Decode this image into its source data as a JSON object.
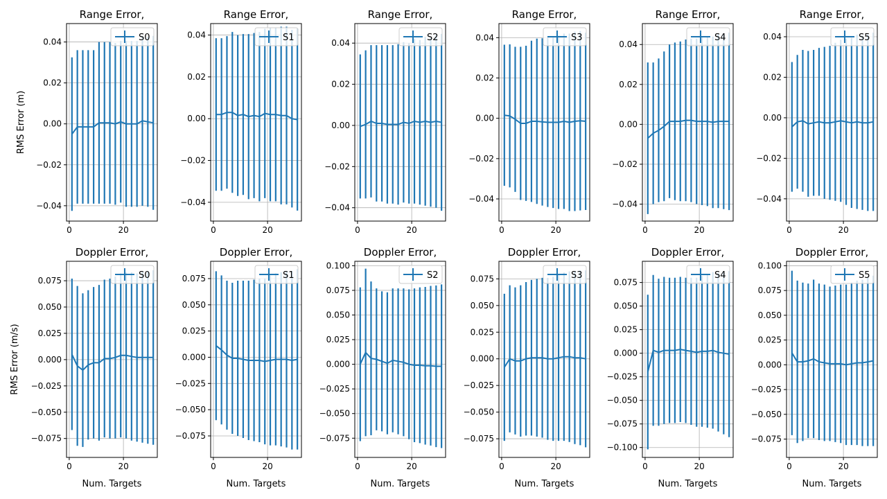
{
  "figure": {
    "background": "#ffffff",
    "series_color": "#1f77b4",
    "grid_color": "#b0b0b0"
  },
  "chart_data": [
    {
      "type": "line",
      "error_bars": true,
      "title": "Range Error,",
      "ylabel": "RMS Error (m)",
      "xlabel": "",
      "legend": "S0",
      "legend_loc": "upper right",
      "grid": true,
      "xlim": [
        -1,
        32.5
      ],
      "ylim": [
        -0.0475,
        0.049
      ],
      "xticks": [
        0,
        20
      ],
      "xtick_labels": [
        "0",
        "20"
      ],
      "yticks": [
        -0.04,
        -0.02,
        0.0,
        0.02,
        0.04
      ],
      "ytick_labels": [
        "−0.04",
        "−0.02",
        "0.00",
        "0.02",
        "0.04"
      ],
      "x": [
        1,
        3,
        5,
        7,
        9,
        11,
        13,
        15,
        17,
        19,
        21,
        23,
        25,
        27,
        29,
        31
      ],
      "y": [
        -0.005,
        -0.0015,
        -0.0015,
        -0.0015,
        -0.0015,
        0.0005,
        0.0005,
        0.0005,
        0.0,
        0.001,
        0.0,
        0.0,
        0.0,
        0.0015,
        0.001,
        0.0005
      ],
      "yerr": [
        0.0375,
        0.0375,
        0.0375,
        0.0375,
        0.0375,
        0.0395,
        0.0395,
        0.0395,
        0.0395,
        0.0395,
        0.0405,
        0.0405,
        0.0405,
        0.0415,
        0.0415,
        0.0425
      ]
    },
    {
      "type": "line",
      "error_bars": true,
      "title": "Range Error,",
      "ylabel": "",
      "xlabel": "",
      "legend": "S1",
      "legend_loc": "upper right",
      "grid": true,
      "xlim": [
        -1,
        32.5
      ],
      "ylim": [
        -0.049,
        0.0455
      ],
      "xticks": [
        0,
        20
      ],
      "xtick_labels": [
        "0",
        "20"
      ],
      "yticks": [
        -0.04,
        -0.02,
        0.0,
        0.02,
        0.04
      ],
      "ytick_labels": [
        "−0.04",
        "−0.02",
        "0.00",
        "0.02",
        "0.04"
      ],
      "x": [
        1,
        3,
        5,
        7,
        9,
        11,
        13,
        15,
        17,
        19,
        21,
        23,
        25,
        27,
        29,
        31
      ],
      "y": [
        0.002,
        0.002,
        0.003,
        0.003,
        0.0015,
        0.002,
        0.001,
        0.0015,
        0.001,
        0.0025,
        0.002,
        0.002,
        0.0015,
        0.0015,
        0.0,
        -0.0005
      ],
      "yerr": [
        0.0365,
        0.0365,
        0.0365,
        0.0385,
        0.0385,
        0.0385,
        0.0395,
        0.0395,
        0.0405,
        0.0405,
        0.0415,
        0.0415,
        0.0425,
        0.0425,
        0.0425,
        0.0435
      ]
    },
    {
      "type": "line",
      "error_bars": true,
      "title": "Range Error,",
      "ylabel": "",
      "xlabel": "",
      "legend": "S2",
      "legend_loc": "upper right",
      "grid": true,
      "xlim": [
        -1,
        32.5
      ],
      "ylim": [
        -0.0465,
        0.0495
      ],
      "xticks": [
        0,
        20
      ],
      "xtick_labels": [
        "0",
        "20"
      ],
      "yticks": [
        -0.04,
        -0.02,
        0.0,
        0.02,
        0.04
      ],
      "ytick_labels": [
        "−0.04",
        "−0.02",
        "0.00",
        "0.02",
        "0.04"
      ],
      "x": [
        1,
        3,
        5,
        7,
        9,
        11,
        13,
        15,
        17,
        19,
        21,
        23,
        25,
        27,
        29,
        31
      ],
      "y": [
        -0.0005,
        0.0005,
        0.002,
        0.001,
        0.001,
        0.0005,
        0.0005,
        0.0005,
        0.0015,
        0.001,
        0.002,
        0.0015,
        0.002,
        0.0015,
        0.002,
        0.0015
      ],
      "yerr": [
        0.035,
        0.036,
        0.037,
        0.038,
        0.038,
        0.0385,
        0.0385,
        0.039,
        0.039,
        0.039,
        0.04,
        0.04,
        0.041,
        0.041,
        0.042,
        0.043
      ]
    },
    {
      "type": "line",
      "error_bars": true,
      "title": "Range Error,",
      "ylabel": "",
      "xlabel": "",
      "legend": "S3",
      "legend_loc": "upper right",
      "grid": true,
      "xlim": [
        -1,
        32.5
      ],
      "ylim": [
        -0.051,
        0.047
      ],
      "xticks": [
        0,
        20
      ],
      "xtick_labels": [
        "0",
        "20"
      ],
      "yticks": [
        -0.04,
        -0.02,
        0.0,
        0.02,
        0.04
      ],
      "ytick_labels": [
        "−0.04",
        "−0.02",
        "0.00",
        "0.02",
        "0.04"
      ],
      "x": [
        1,
        3,
        5,
        7,
        9,
        11,
        13,
        15,
        17,
        19,
        21,
        23,
        25,
        27,
        29,
        31
      ],
      "y": [
        0.0015,
        0.0012,
        -0.0005,
        -0.0025,
        -0.0025,
        -0.0015,
        -0.0015,
        -0.0018,
        -0.002,
        -0.002,
        -0.002,
        -0.0015,
        -0.002,
        -0.0015,
        -0.0012,
        -0.0015
      ],
      "yerr": [
        0.035,
        0.0355,
        0.036,
        0.038,
        0.0385,
        0.04,
        0.041,
        0.0415,
        0.042,
        0.0425,
        0.043,
        0.0435,
        0.044,
        0.0445,
        0.0445,
        0.044
      ]
    },
    {
      "type": "line",
      "error_bars": true,
      "title": "Range Error,",
      "ylabel": "",
      "xlabel": "",
      "legend": "S4",
      "legend_loc": "upper right",
      "grid": true,
      "xlim": [
        -1,
        32.5
      ],
      "ylim": [
        -0.0485,
        0.0505
      ],
      "xticks": [
        0,
        20
      ],
      "xtick_labels": [
        "0",
        "20"
      ],
      "yticks": [
        -0.04,
        -0.02,
        0.0,
        0.02,
        0.04
      ],
      "ytick_labels": [
        "−0.04",
        "−0.02",
        "0.00",
        "0.02",
        "0.04"
      ],
      "x": [
        1,
        3,
        5,
        7,
        9,
        11,
        13,
        15,
        17,
        19,
        21,
        23,
        25,
        27,
        29,
        31
      ],
      "y": [
        -0.007,
        -0.0045,
        -0.003,
        -0.001,
        0.0015,
        0.0015,
        0.0015,
        0.002,
        0.002,
        0.0015,
        0.0015,
        0.0015,
        0.001,
        0.0015,
        0.0015,
        0.0015
      ],
      "yerr": [
        0.038,
        0.0355,
        0.036,
        0.0375,
        0.0385,
        0.0395,
        0.04,
        0.0405,
        0.041,
        0.0415,
        0.042,
        0.0425,
        0.043,
        0.0435,
        0.044,
        0.0445
      ]
    },
    {
      "type": "line",
      "error_bars": true,
      "title": "Range Error,",
      "ylabel": "",
      "xlabel": "",
      "legend": "S5",
      "legend_loc": "upper right",
      "grid": true,
      "xlim": [
        -1,
        32.5
      ],
      "ylim": [
        -0.051,
        0.0465
      ],
      "xticks": [
        0,
        20
      ],
      "xtick_labels": [
        "0",
        "20"
      ],
      "yticks": [
        -0.04,
        -0.02,
        0.0,
        0.02,
        0.04
      ],
      "ytick_labels": [
        "−0.04",
        "−0.02",
        "0.00",
        "0.02",
        "0.04"
      ],
      "x": [
        1,
        3,
        5,
        7,
        9,
        11,
        13,
        15,
        17,
        19,
        21,
        23,
        25,
        27,
        29,
        31
      ],
      "y": [
        -0.0045,
        -0.002,
        -0.0015,
        -0.003,
        -0.0025,
        -0.002,
        -0.0025,
        -0.0025,
        -0.002,
        -0.0015,
        -0.002,
        -0.0025,
        -0.002,
        -0.0025,
        -0.0025,
        -0.002
      ],
      "yerr": [
        0.032,
        0.033,
        0.035,
        0.036,
        0.036,
        0.0365,
        0.0375,
        0.038,
        0.039,
        0.04,
        0.041,
        0.042,
        0.043,
        0.043,
        0.0435,
        0.044
      ]
    },
    {
      "type": "line",
      "error_bars": true,
      "title": "Doppler Error,",
      "ylabel": "RMS Error (m/s)",
      "xlabel": "Num. Targets",
      "legend": "S0",
      "legend_loc": "upper right",
      "grid": true,
      "xlim": [
        -1,
        32.5
      ],
      "ylim": [
        -0.093,
        0.0935
      ],
      "xticks": [
        0,
        20
      ],
      "xtick_labels": [
        "0",
        "20"
      ],
      "yticks": [
        -0.075,
        -0.05,
        -0.025,
        0.0,
        0.025,
        0.05,
        0.075
      ],
      "ytick_labels": [
        "−0.075",
        "−0.050",
        "−0.025",
        "0.000",
        "0.025",
        "0.050",
        "0.075"
      ],
      "x": [
        1,
        3,
        5,
        7,
        9,
        11,
        13,
        15,
        17,
        19,
        21,
        23,
        25,
        27,
        29,
        31
      ],
      "y": [
        0.005,
        -0.006,
        -0.01,
        -0.005,
        -0.003,
        -0.003,
        0.001,
        0.001,
        0.002,
        0.004,
        0.004,
        0.003,
        0.002,
        0.002,
        0.002,
        0.002
      ],
      "yerr": [
        0.072,
        0.076,
        0.073,
        0.071,
        0.072,
        0.074,
        0.075,
        0.076,
        0.077,
        0.078,
        0.079,
        0.08,
        0.08,
        0.081,
        0.082,
        0.083
      ]
    },
    {
      "type": "line",
      "error_bars": true,
      "title": "Doppler Error,",
      "ylabel": "",
      "xlabel": "Num. Targets",
      "legend": "S1",
      "legend_loc": "upper right",
      "grid": true,
      "xlim": [
        -1,
        32.5
      ],
      "ylim": [
        -0.0955,
        0.0915
      ],
      "xticks": [
        0,
        20
      ],
      "xtick_labels": [
        "0",
        "20"
      ],
      "yticks": [
        -0.075,
        -0.05,
        -0.025,
        0.0,
        0.025,
        0.05,
        0.075
      ],
      "ytick_labels": [
        "−0.075",
        "−0.050",
        "−0.025",
        "0.000",
        "0.025",
        "0.050",
        "0.075"
      ],
      "x": [
        1,
        3,
        5,
        7,
        9,
        11,
        13,
        15,
        17,
        19,
        21,
        23,
        25,
        27,
        29,
        31
      ],
      "y": [
        0.011,
        0.007,
        0.002,
        -0.001,
        -0.001,
        -0.002,
        -0.003,
        -0.003,
        -0.003,
        -0.004,
        -0.003,
        -0.002,
        -0.002,
        -0.002,
        -0.003,
        -0.002
      ],
      "yerr": [
        0.071,
        0.071,
        0.071,
        0.072,
        0.074,
        0.075,
        0.076,
        0.077,
        0.078,
        0.079,
        0.081,
        0.082,
        0.083,
        0.084,
        0.085,
        0.086
      ]
    },
    {
      "type": "line",
      "error_bars": true,
      "title": "Doppler Error,",
      "ylabel": "",
      "xlabel": "Num. Targets",
      "legend": "S2",
      "legend_loc": "upper right",
      "grid": true,
      "xlim": [
        -1,
        32.5
      ],
      "ylim": [
        -0.0945,
        0.1045
      ],
      "xticks": [
        0,
        20
      ],
      "xtick_labels": [
        "0",
        "20"
      ],
      "yticks": [
        -0.075,
        -0.05,
        -0.025,
        0.0,
        0.025,
        0.05,
        0.075,
        0.1
      ],
      "ytick_labels": [
        "−0.075",
        "−0.050",
        "−0.025",
        "0.000",
        "0.025",
        "0.050",
        "0.075",
        "0.100"
      ],
      "x": [
        1,
        3,
        5,
        7,
        9,
        11,
        13,
        15,
        17,
        19,
        21,
        23,
        25,
        27,
        29,
        31
      ],
      "y": [
        0.0,
        0.012,
        0.006,
        0.005,
        0.003,
        0.001,
        0.004,
        0.003,
        0.002,
        0.0,
        -0.001,
        -0.001,
        -0.0015,
        -0.0015,
        -0.002,
        -0.002
      ],
      "yerr": [
        0.078,
        0.085,
        0.078,
        0.072,
        0.071,
        0.072,
        0.073,
        0.074,
        0.075,
        0.076,
        0.078,
        0.079,
        0.08,
        0.081,
        0.082,
        0.083
      ]
    },
    {
      "type": "line",
      "error_bars": true,
      "title": "Doppler Error,",
      "ylabel": "",
      "xlabel": "Num. Targets",
      "legend": "S3",
      "legend_loc": "upper right",
      "grid": true,
      "xlim": [
        -1,
        32.5
      ],
      "ylim": [
        -0.0925,
        0.0915
      ],
      "xticks": [
        0,
        20
      ],
      "xtick_labels": [
        "0",
        "20"
      ],
      "yticks": [
        -0.075,
        -0.05,
        -0.025,
        0.0,
        0.025,
        0.05,
        0.075
      ],
      "ytick_labels": [
        "−0.075",
        "−0.050",
        "−0.025",
        "0.000",
        "0.025",
        "0.050",
        "0.075"
      ],
      "x": [
        1,
        3,
        5,
        7,
        9,
        11,
        13,
        15,
        17,
        19,
        21,
        23,
        25,
        27,
        29,
        31
      ],
      "y": [
        -0.008,
        0.0,
        -0.002,
        -0.002,
        0.0,
        0.001,
        0.001,
        0.001,
        0.0,
        0.0,
        0.001,
        0.002,
        0.002,
        0.001,
        0.001,
        0.0
      ],
      "yerr": [
        0.069,
        0.069,
        0.069,
        0.071,
        0.072,
        0.073,
        0.074,
        0.075,
        0.076,
        0.077,
        0.078,
        0.079,
        0.08,
        0.081,
        0.082,
        0.083
      ]
    },
    {
      "type": "line",
      "error_bars": true,
      "title": "Doppler Error,",
      "ylabel": "",
      "xlabel": "Num. Targets",
      "legend": "S4",
      "legend_loc": "upper right",
      "grid": true,
      "xlim": [
        -1,
        32.5
      ],
      "ylim": [
        -0.1105,
        0.0975
      ],
      "xticks": [
        0,
        20
      ],
      "xtick_labels": [
        "0",
        "20"
      ],
      "yticks": [
        -0.1,
        -0.075,
        -0.05,
        -0.025,
        0.0,
        0.025,
        0.05,
        0.075
      ],
      "ytick_labels": [
        "−0.100",
        "−0.075",
        "−0.050",
        "−0.025",
        "0.000",
        "0.025",
        "0.050",
        "0.075"
      ],
      "x": [
        1,
        3,
        5,
        7,
        9,
        11,
        13,
        15,
        17,
        19,
        21,
        23,
        25,
        27,
        29,
        31
      ],
      "y": [
        -0.02,
        0.003,
        0.001,
        0.003,
        0.003,
        0.003,
        0.004,
        0.003,
        0.002,
        0.001,
        0.002,
        0.002,
        0.003,
        0.001,
        0.0,
        -0.001
      ],
      "yerr": [
        0.082,
        0.08,
        0.078,
        0.078,
        0.077,
        0.077,
        0.077,
        0.077,
        0.078,
        0.079,
        0.08,
        0.081,
        0.083,
        0.084,
        0.086,
        0.088
      ]
    },
    {
      "type": "line",
      "error_bars": true,
      "title": "Doppler Error,",
      "ylabel": "",
      "xlabel": "Num. Targets",
      "legend": "S5",
      "legend_loc": "upper right",
      "grid": true,
      "xlim": [
        -1,
        32.5
      ],
      "ylim": [
        -0.0935,
        0.1045
      ],
      "xticks": [
        0,
        20
      ],
      "xtick_labels": [
        "0",
        "20"
      ],
      "yticks": [
        -0.075,
        -0.05,
        -0.025,
        0.0,
        0.025,
        0.05,
        0.075,
        0.1
      ],
      "ytick_labels": [
        "−0.075",
        "−0.050",
        "−0.025",
        "0.000",
        "0.025",
        "0.050",
        "0.075",
        "0.100"
      ],
      "x": [
        1,
        3,
        5,
        7,
        9,
        11,
        13,
        15,
        17,
        19,
        21,
        23,
        25,
        27,
        29,
        31
      ],
      "y": [
        0.012,
        0.003,
        0.003,
        0.004,
        0.006,
        0.003,
        0.002,
        0.001,
        0.001,
        0.001,
        0.0,
        0.001,
        0.002,
        0.002,
        0.003,
        0.004
      ],
      "yerr": [
        0.083,
        0.082,
        0.08,
        0.078,
        0.08,
        0.079,
        0.079,
        0.078,
        0.079,
        0.08,
        0.081,
        0.082,
        0.083,
        0.084,
        0.085,
        0.086
      ]
    }
  ]
}
